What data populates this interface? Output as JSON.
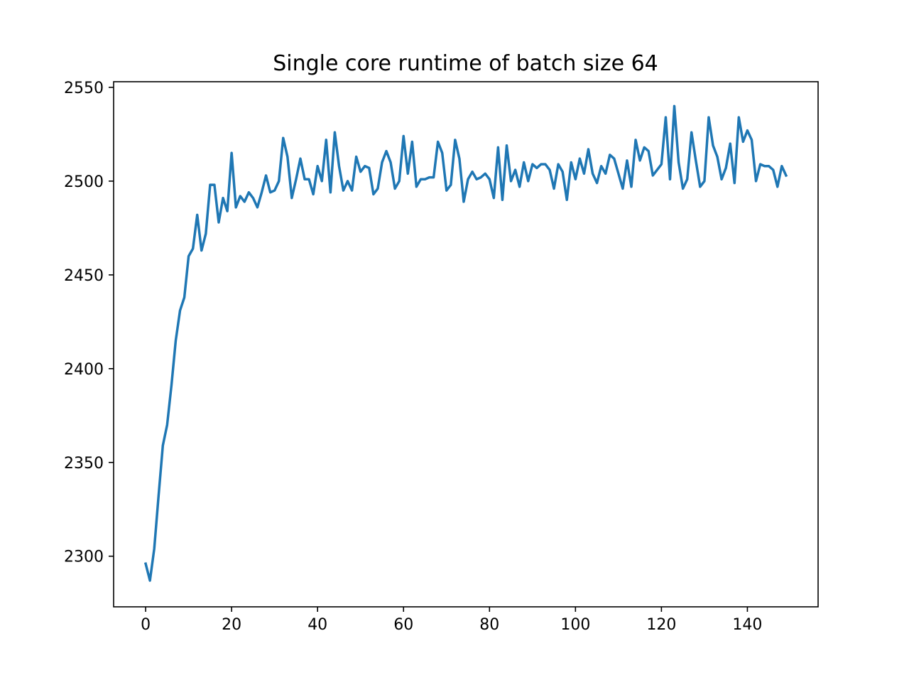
{
  "chart_data": {
    "type": "line",
    "title": "Single core runtime of batch size 64",
    "xlabel": "",
    "ylabel": "",
    "xlim": [
      -7.45,
      156.45
    ],
    "ylim": [
      2273,
      2553
    ],
    "xticks": [
      0,
      20,
      40,
      60,
      80,
      100,
      120,
      140
    ],
    "yticks": [
      2300,
      2350,
      2400,
      2450,
      2500,
      2550
    ],
    "grid": false,
    "legend": "none",
    "series": [
      {
        "color": "#1f77b4",
        "x": [
          0,
          1,
          2,
          3,
          4,
          5,
          6,
          7,
          8,
          9,
          10,
          11,
          12,
          13,
          14,
          15,
          16,
          17,
          18,
          19,
          20,
          21,
          22,
          23,
          24,
          25,
          26,
          27,
          28,
          29,
          30,
          31,
          32,
          33,
          34,
          35,
          36,
          37,
          38,
          39,
          40,
          41,
          42,
          43,
          44,
          45,
          46,
          47,
          48,
          49,
          50,
          51,
          52,
          53,
          54,
          55,
          56,
          57,
          58,
          59,
          60,
          61,
          62,
          63,
          64,
          65,
          66,
          67,
          68,
          69,
          70,
          71,
          72,
          73,
          74,
          75,
          76,
          77,
          78,
          79,
          80,
          81,
          82,
          83,
          84,
          85,
          86,
          87,
          88,
          89,
          90,
          91,
          92,
          93,
          94,
          95,
          96,
          97,
          98,
          99,
          100,
          101,
          102,
          103,
          104,
          105,
          106,
          107,
          108,
          109,
          110,
          111,
          112,
          113,
          114,
          115,
          116,
          117,
          118,
          119,
          120,
          121,
          122,
          123,
          124,
          125,
          126,
          127,
          128,
          129,
          130,
          131,
          132,
          133,
          134,
          135,
          136,
          137,
          138,
          139,
          140,
          141,
          142,
          143,
          144,
          145,
          146,
          147,
          148,
          149
        ],
        "values": [
          2296,
          2287,
          2304,
          2332,
          2359,
          2370,
          2391,
          2415,
          2431,
          2438,
          2460,
          2464,
          2482,
          2463,
          2472,
          2498,
          2498,
          2478,
          2491,
          2484,
          2515,
          2486,
          2492,
          2489,
          2494,
          2491,
          2486,
          2494,
          2503,
          2494,
          2495,
          2500,
          2523,
          2513,
          2491,
          2501,
          2512,
          2501,
          2501,
          2493,
          2508,
          2500,
          2522,
          2494,
          2526,
          2508,
          2495,
          2500,
          2495,
          2513,
          2505,
          2508,
          2507,
          2493,
          2496,
          2510,
          2516,
          2510,
          2496,
          2500,
          2524,
          2504,
          2521,
          2497,
          2501,
          2501,
          2502,
          2502,
          2521,
          2515,
          2495,
          2498,
          2522,
          2512,
          2489,
          2501,
          2505,
          2501,
          2502,
          2504,
          2501,
          2491,
          2518,
          2490,
          2519,
          2500,
          2506,
          2497,
          2510,
          2500,
          2509,
          2507,
          2509,
          2509,
          2506,
          2496,
          2509,
          2505,
          2490,
          2510,
          2501,
          2512,
          2504,
          2517,
          2504,
          2499,
          2508,
          2504,
          2514,
          2512,
          2504,
          2496,
          2511,
          2497,
          2522,
          2511,
          2518,
          2516,
          2503,
          2506,
          2509,
          2534,
          2501,
          2540,
          2510,
          2496,
          2501,
          2526,
          2511,
          2497,
          2500,
          2534,
          2519,
          2513,
          2501,
          2507,
          2520,
          2499,
          2534,
          2521,
          2527,
          2522,
          2500,
          2509,
          2508,
          2508,
          2506,
          2497,
          2508,
          2503
        ]
      }
    ]
  }
}
